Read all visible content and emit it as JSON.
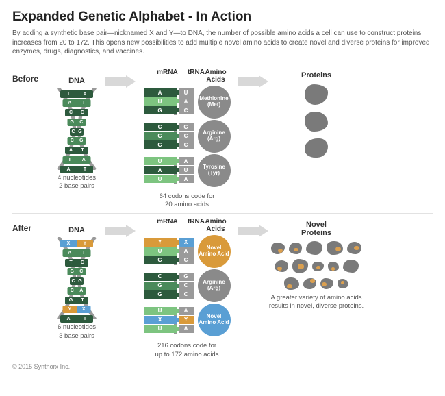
{
  "title": "Expanded Genetic Alphabet - In Action",
  "intro": "By adding a synthetic base pair—nicknamed X and Y—to DNA, the number of possible amino acids a cell can use to construct proteins increases from 20 to 172. This opens new possibilities to add multiple novel amino acids to create novel and diverse proteins for improved enzymes, drugs, diagnostics, and vaccines.",
  "copyright": "© 2015 Synthorx Inc.",
  "colors": {
    "dark_green": "#2d5a3d",
    "mid_green": "#4a8a5a",
    "light_green": "#7dc480",
    "blue": "#5a9fd4",
    "orange": "#d99a3a",
    "grey_aa": "#8a8a8a",
    "arrow": "#d8d8d8",
    "strand": "#9a9a9a",
    "blob_grey": "#7a7a7a",
    "blob_orange": "#dba050"
  },
  "labels": {
    "dna": "DNA",
    "mrna": "mRNA",
    "trna": "tRNA",
    "amino": "Amino Acids",
    "proteins": "Proteins",
    "novel_proteins": "Novel Proteins"
  },
  "before": {
    "section": "Before",
    "dna_rungs": [
      {
        "l": "T",
        "r": "A",
        "cl": "#2d5a3d",
        "cr": "#2d5a3d"
      },
      {
        "l": "A",
        "r": "T",
        "cl": "#4a8a5a",
        "cr": "#4a8a5a"
      },
      {
        "l": "C",
        "r": "G",
        "cl": "#2d5a3d",
        "cr": "#2d5a3d"
      },
      {
        "l": "G",
        "r": "C",
        "cl": "#4a8a5a",
        "cr": "#4a8a5a"
      },
      {
        "l": "C",
        "r": "G",
        "cl": "#2d5a3d",
        "cr": "#2d5a3d"
      },
      {
        "l": "C",
        "r": "G",
        "cl": "#4a8a5a",
        "cr": "#4a8a5a"
      },
      {
        "l": "A",
        "r": "T",
        "cl": "#2d5a3d",
        "cr": "#2d5a3d"
      },
      {
        "l": "T",
        "r": "A",
        "cl": "#4a8a5a",
        "cr": "#4a8a5a"
      },
      {
        "l": "A",
        "r": "T",
        "cl": "#2d5a3d",
        "cr": "#2d5a3d"
      }
    ],
    "dna_caption": "4 nucleotides\n2 base pairs",
    "codons": [
      {
        "mrna": [
          "A",
          "U",
          "G"
        ],
        "mrna_c": [
          "#2d5a3d",
          "#7dc480",
          "#2d5a3d"
        ],
        "trna": [
          "U",
          "A",
          "C"
        ],
        "aa_label": "Methionine (Met)",
        "aa_color": "#8a8a8a"
      },
      {
        "mrna": [
          "C",
          "G",
          "G"
        ],
        "mrna_c": [
          "#2d5a3d",
          "#4a8a5a",
          "#2d5a3d"
        ],
        "trna": [
          "G",
          "C",
          "C"
        ],
        "aa_label": "Arginine (Arg)",
        "aa_color": "#8a8a8a"
      },
      {
        "mrna": [
          "U",
          "A",
          "U"
        ],
        "mrna_c": [
          "#7dc480",
          "#2d5a3d",
          "#7dc480"
        ],
        "trna": [
          "A",
          "U",
          "A"
        ],
        "aa_label": "Tyrosine (Tyr)",
        "aa_color": "#8a8a8a"
      }
    ],
    "codon_caption": "64 codons code for\n20 amino acids",
    "protein_blobs": 3,
    "novel_spots": false,
    "protein_caption": ""
  },
  "after": {
    "section": "After",
    "dna_rungs": [
      {
        "l": "X",
        "r": "Y",
        "cl": "#5a9fd4",
        "cr": "#d99a3a"
      },
      {
        "l": "A",
        "r": "T",
        "cl": "#4a8a5a",
        "cr": "#4a8a5a"
      },
      {
        "l": "T",
        "r": "G",
        "cl": "#2d5a3d",
        "cr": "#2d5a3d"
      },
      {
        "l": "G",
        "r": "C",
        "cl": "#4a8a5a",
        "cr": "#4a8a5a"
      },
      {
        "l": "C",
        "r": "G",
        "cl": "#2d5a3d",
        "cr": "#2d5a3d"
      },
      {
        "l": "C",
        "r": "A",
        "cl": "#4a8a5a",
        "cr": "#4a8a5a"
      },
      {
        "l": "G",
        "r": "T",
        "cl": "#2d5a3d",
        "cr": "#2d5a3d"
      },
      {
        "l": "Y",
        "r": "X",
        "cl": "#d99a3a",
        "cr": "#5a9fd4"
      },
      {
        "l": "A",
        "r": "T",
        "cl": "#2d5a3d",
        "cr": "#2d5a3d"
      }
    ],
    "dna_caption": "6 nucleotides\n3 base pairs",
    "codons": [
      {
        "mrna": [
          "Y",
          "U",
          "G"
        ],
        "mrna_c": [
          "#d99a3a",
          "#7dc480",
          "#2d5a3d"
        ],
        "trna": [
          "X",
          "A",
          "C"
        ],
        "aa_label": "Novel Amino Acid",
        "aa_color": "#d99a3a"
      },
      {
        "mrna": [
          "C",
          "G",
          "G"
        ],
        "mrna_c": [
          "#2d5a3d",
          "#4a8a5a",
          "#2d5a3d"
        ],
        "trna": [
          "G",
          "C",
          "C"
        ],
        "aa_label": "Arginine (Arg)",
        "aa_color": "#8a8a8a"
      },
      {
        "mrna": [
          "U",
          "X",
          "U"
        ],
        "mrna_c": [
          "#7dc480",
          "#5a9fd4",
          "#7dc480"
        ],
        "trna": [
          "A",
          "Y",
          "A"
        ],
        "aa_label": "Novel Amino Acid",
        "aa_color": "#5a9fd4"
      }
    ],
    "codon_caption": "216 codons code for\nup to 172 amino acids",
    "protein_blobs": 14,
    "novel_spots": true,
    "protein_caption": "A greater variety of amino acids results in novel, diverse proteins."
  }
}
